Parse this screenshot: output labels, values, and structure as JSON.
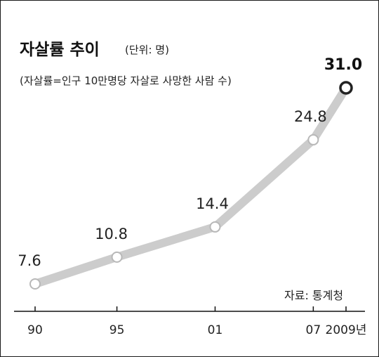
{
  "chart_data": {
    "type": "line",
    "title": "자살률 추이",
    "unit_note": "(단위: 명)",
    "subtitle": "(자살률=인구 10만명당 자살로 사망한 사람 수)",
    "source": "자료: 통계청",
    "x": [
      "90",
      "95",
      "01",
      "07",
      "2009년"
    ],
    "x_numeric": [
      1990,
      1995,
      2001,
      2007,
      2009
    ],
    "values": [
      7.6,
      10.8,
      14.4,
      24.8,
      31.0
    ],
    "value_labels": [
      "7.6",
      "10.8",
      "14.4",
      "24.8",
      "31.0"
    ],
    "ylim": [
      7.6,
      31.0
    ],
    "grid": false,
    "line_color": "#cccccc",
    "marker_fill": "#ffffff",
    "highlight_marker_stroke": "#222222"
  }
}
